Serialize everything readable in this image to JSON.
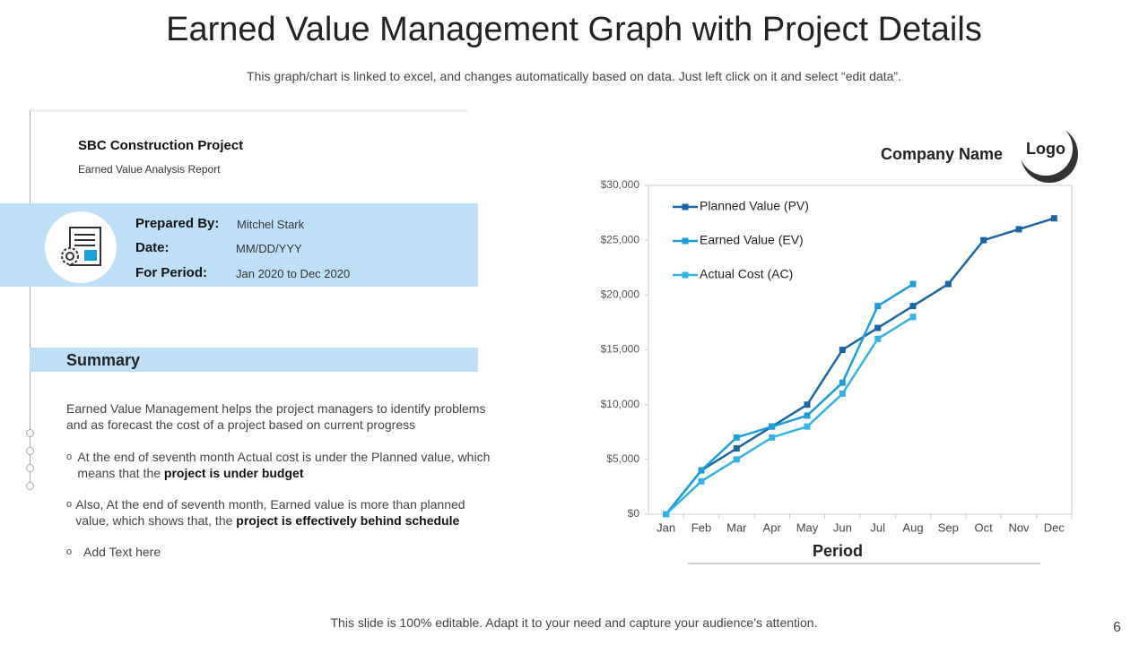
{
  "header": {
    "title": "Earned Value Management Graph with Project Details",
    "subtitle": "This graph/chart is linked to excel, and changes automatically based on data. Just left click on it and select “edit data”."
  },
  "project": {
    "name": "SBC Construction Project",
    "report": "Earned Value Analysis Report",
    "details": [
      {
        "label": "Prepared By:",
        "value": "Mitchel Stark"
      },
      {
        "label": "Date:",
        "value": "MM/DD/YYY"
      },
      {
        "label": "For Period:",
        "value": "Jan 2020 to Dec 2020"
      }
    ]
  },
  "summary": {
    "heading": "Summary",
    "intro": "Earned Value Management helps the project managers to identify problems and as forecast the cost of a project based on current progress",
    "bullets": [
      {
        "text": "At the end of seventh month Actual cost is under the Planned value, which means that the ",
        "bold": "project is under budget"
      },
      {
        "text": "Also, At the end of seventh month, Earned value is more than planned value, which shows that, the ",
        "bold": "project is effectively behind schedule"
      },
      {
        "text": "Add Text here"
      }
    ]
  },
  "company": {
    "name": "Company Name",
    "logo": "Logo"
  },
  "footer": {
    "text": "This slide is 100% editable. Adapt it to your need and capture your audience’s attention.",
    "page": "6"
  },
  "chart_data": {
    "type": "line",
    "x_label": "Period",
    "categories": [
      "Jan",
      "Feb",
      "Mar",
      "Apr",
      "May",
      "Jun",
      "Jul",
      "Aug",
      "Sep",
      "Oct",
      "Nov",
      "Dec"
    ],
    "series": [
      {
        "name": "Planned Value (PV)",
        "color": "#1a65a3",
        "values": [
          0,
          4000,
          6000,
          8000,
          10000,
          15000,
          17000,
          19000,
          21000,
          25000,
          26000,
          27000
        ]
      },
      {
        "name": "Earned Value (EV)",
        "color": "#1d9fd9",
        "values": [
          0,
          4000,
          7000,
          8000,
          9000,
          12000,
          19000,
          21000,
          null,
          null,
          null,
          null
        ]
      },
      {
        "name": "Actual Cost (AC)",
        "color": "#35b3e6",
        "values": [
          0,
          3000,
          5000,
          7000,
          8000,
          11000,
          16000,
          18000,
          null,
          null,
          null,
          null
        ]
      }
    ],
    "ylim": [
      0,
      30000
    ],
    "yticks": [
      {
        "value": 0,
        "label": "$0"
      },
      {
        "value": 5000,
        "label": "$5,000"
      },
      {
        "value": 10000,
        "label": "$10,000"
      },
      {
        "value": 15000,
        "label": "$15,000"
      },
      {
        "value": 20000,
        "label": "$20,000"
      },
      {
        "value": 25000,
        "label": "$25,000"
      },
      {
        "value": 30000,
        "label": "$30,000"
      }
    ],
    "legend": "upper left"
  }
}
